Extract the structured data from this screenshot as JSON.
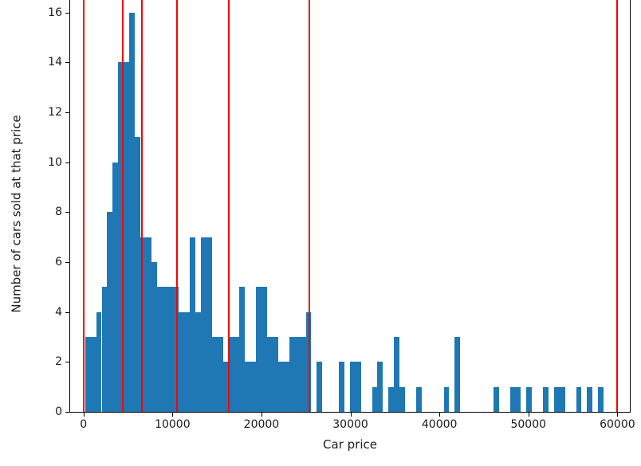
{
  "figure": {
    "background": "#ffffff",
    "text_color": "#1a1a1a"
  },
  "chart_data": {
    "type": "bar",
    "subtype": "histogram-with-vlines",
    "title": "",
    "xlabel": "Car price",
    "ylabel": "Number of cars sold at that price",
    "x_ticks": [
      "0",
      "10000",
      "20000",
      "30000",
      "40000",
      "50000",
      "60000"
    ],
    "x_tick_values": [
      0,
      10000,
      20000,
      30000,
      40000,
      50000,
      60000
    ],
    "y_ticks": [
      "0",
      "2",
      "4",
      "6",
      "8",
      "10",
      "12",
      "14",
      "16"
    ],
    "y_tick_values": [
      0,
      2,
      4,
      6,
      8,
      10,
      12,
      14,
      16
    ],
    "xlim": [
      -1500,
      61400
    ],
    "ylim": [
      0,
      16.5
    ],
    "grid": false,
    "legend": null,
    "bar_color": "#1f77b4",
    "vline_color": "#ff0000",
    "bin_width": 620,
    "bars": [
      [
        180,
        3
      ],
      [
        800,
        3
      ],
      [
        1420,
        4
      ],
      [
        2040,
        5
      ],
      [
        2660,
        8
      ],
      [
        3280,
        10
      ],
      [
        3900,
        14
      ],
      [
        4520,
        14
      ],
      [
        5140,
        16
      ],
      [
        5760,
        11
      ],
      [
        6380,
        7
      ],
      [
        7000,
        7
      ],
      [
        7620,
        6
      ],
      [
        8240,
        5
      ],
      [
        8860,
        5
      ],
      [
        9480,
        5
      ],
      [
        10100,
        5
      ],
      [
        10720,
        4
      ],
      [
        11340,
        4
      ],
      [
        11960,
        7
      ],
      [
        12580,
        4
      ],
      [
        13200,
        7
      ],
      [
        13820,
        7
      ],
      [
        14440,
        3
      ],
      [
        15060,
        3
      ],
      [
        15680,
        2
      ],
      [
        16300,
        3
      ],
      [
        16920,
        3
      ],
      [
        17540,
        5
      ],
      [
        18160,
        2
      ],
      [
        18780,
        2
      ],
      [
        19400,
        5
      ],
      [
        20020,
        5
      ],
      [
        20640,
        3
      ],
      [
        21260,
        3
      ],
      [
        21880,
        2
      ],
      [
        22500,
        2
      ],
      [
        23120,
        3
      ],
      [
        23740,
        3
      ],
      [
        24360,
        3
      ],
      [
        24980,
        4
      ],
      [
        26220,
        2
      ],
      [
        28700,
        2
      ],
      [
        29940,
        2
      ],
      [
        30560,
        2
      ],
      [
        32420,
        1
      ],
      [
        33040,
        2
      ],
      [
        34280,
        1
      ],
      [
        34900,
        3
      ],
      [
        35520,
        1
      ],
      [
        37380,
        1
      ],
      [
        40480,
        1
      ],
      [
        41720,
        3
      ],
      [
        46060,
        1
      ],
      [
        47920,
        1
      ],
      [
        48540,
        1
      ],
      [
        49780,
        1
      ],
      [
        51640,
        1
      ],
      [
        52880,
        1
      ],
      [
        53500,
        1
      ],
      [
        55360,
        1
      ],
      [
        56600,
        1
      ],
      [
        57840,
        1
      ]
    ],
    "vlines": [
      0,
      4400,
      6600,
      10500,
      16300,
      25400,
      60000
    ]
  }
}
